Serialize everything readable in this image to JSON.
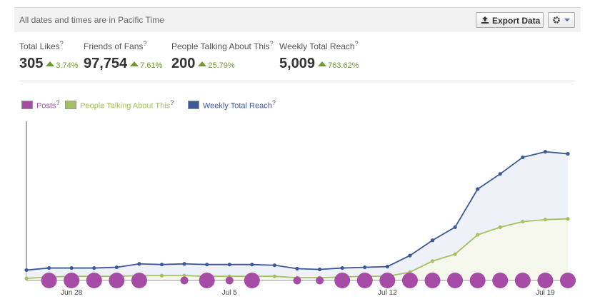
{
  "header": {
    "note": "All dates and times are in Pacific Time",
    "export_button": "Export Data"
  },
  "help": "?",
  "stats": [
    {
      "label": "Total Likes",
      "value": "305",
      "change": "3.74%"
    },
    {
      "label": "Friends of Fans",
      "value": "97,754",
      "change": "7.61%"
    },
    {
      "label": "People Talking About This",
      "value": "200",
      "change": "25.79%"
    },
    {
      "label": "Weekly Total Reach",
      "value": "5,009",
      "change": "763.62%"
    }
  ],
  "chart_data": {
    "type": "line",
    "categories": [
      null,
      null,
      "Jun 28",
      null,
      null,
      null,
      null,
      null,
      null,
      "Jul 5",
      null,
      null,
      null,
      null,
      null,
      null,
      "Jul 12",
      null,
      null,
      null,
      null,
      null,
      null,
      "Jul 19",
      null
    ],
    "ylim": [
      0,
      230
    ],
    "series": [
      {
        "name": "Posts",
        "color": "#a64ca6",
        "values": [
          0,
          2,
          2,
          2,
          2,
          2,
          0,
          1,
          2,
          1,
          2,
          0,
          1,
          1,
          2,
          2,
          2,
          2,
          2,
          2,
          2,
          2,
          2,
          2,
          2
        ]
      },
      {
        "name": "People Talking About This",
        "color": "#a4c161",
        "values": [
          3,
          5,
          6,
          6,
          6,
          7,
          7,
          7,
          6,
          6,
          6,
          6,
          4,
          4,
          5,
          6,
          6,
          12,
          28,
          38,
          66,
          77,
          85,
          88,
          89
        ]
      },
      {
        "name": "Weekly Total Reach",
        "color": "#3b5998",
        "values": [
          15,
          18,
          18,
          18,
          19,
          24,
          23,
          24,
          23,
          23,
          23,
          22,
          17,
          16,
          18,
          19,
          20,
          36,
          58,
          77,
          132,
          154,
          178,
          186,
          183
        ]
      }
    ]
  }
}
